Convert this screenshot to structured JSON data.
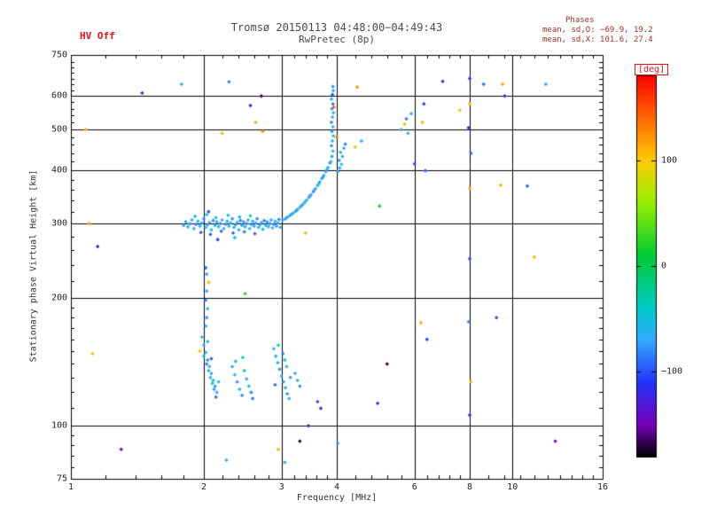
{
  "header": {
    "hv_status": "HV Off",
    "title": "Tromsø 20150113 04:48:00−04:49:43",
    "subtitle": "RwPretec (8p)",
    "phases": {
      "label": "Phases",
      "line_o": "mean, sd,O: −69.9, 19.2",
      "line_x": "mean, sd,X: 101.6, 27.4"
    }
  },
  "axes": {
    "x": {
      "label": "Frequency [MHz]",
      "scale": "log",
      "min": 1,
      "max": 16,
      "ticks": [
        1,
        2,
        3,
        4,
        6,
        8,
        10,
        16
      ],
      "minor": [
        1.2,
        1.4,
        1.6,
        1.8,
        2.2,
        2.4,
        2.6,
        2.8,
        3.2,
        3.4,
        3.6,
        3.8,
        4.4,
        4.8,
        5.2,
        5.6,
        6.4,
        6.8,
        7.2,
        7.6,
        8.8,
        9.6,
        10.4,
        11.2,
        12,
        12.8,
        13.6,
        14.4,
        15.2
      ]
    },
    "y": {
      "label": "Stationary phase Virtual Height [km]",
      "scale": "log",
      "min": 75,
      "max": 750,
      "ticks": [
        75,
        100,
        200,
        300,
        400,
        500,
        600,
        750
      ],
      "minor": [
        80,
        85,
        90,
        95,
        110,
        120,
        130,
        140,
        150,
        160,
        170,
        180,
        190,
        220,
        240,
        260,
        280,
        320,
        340,
        360,
        380,
        420,
        440,
        460,
        480,
        520,
        540,
        560,
        580,
        620,
        640,
        660,
        680,
        700,
        720
      ]
    }
  },
  "colorbar": {
    "label": "[deg]",
    "min": -180,
    "max": 180,
    "ticks": [
      100,
      0,
      -100
    ],
    "stops": [
      {
        "v": 180,
        "c": "#ff0000"
      },
      {
        "v": 140,
        "c": "#ff6600"
      },
      {
        "v": 100,
        "c": "#ffcc00"
      },
      {
        "v": 60,
        "c": "#99ee00"
      },
      {
        "v": 10,
        "c": "#00cc33"
      },
      {
        "v": -40,
        "c": "#00cccc"
      },
      {
        "v": -70,
        "c": "#33aaff"
      },
      {
        "v": -110,
        "c": "#2233ff"
      },
      {
        "v": -150,
        "c": "#7700bb"
      },
      {
        "v": -180,
        "c": "#000000"
      }
    ]
  },
  "chart_data": {
    "type": "scatter",
    "title": "Tromsø 20150113 04:48:00−04:49:43 — RwPretec (8p)",
    "xlabel": "Frequency [MHz]",
    "ylabel": "Stationary phase Virtual Height [km]",
    "x_range": [
      1,
      16
    ],
    "y_range": [
      75,
      750
    ],
    "color_range": [
      -180,
      180
    ],
    "color_units": "deg",
    "point_format": [
      "freq_MHz",
      "height_km",
      "phase_deg"
    ],
    "points": [
      [
        1.8,
        297,
        -62
      ],
      [
        1.82,
        303,
        -75
      ],
      [
        1.84,
        295,
        -58
      ],
      [
        1.86,
        300,
        -80
      ],
      [
        1.88,
        306,
        -70
      ],
      [
        1.9,
        292,
        -66
      ],
      [
        1.92,
        299,
        -85
      ],
      [
        1.94,
        304,
        -55
      ],
      [
        1.96,
        296,
        -72
      ],
      [
        1.98,
        301,
        -64
      ],
      [
        2.0,
        308,
        -78
      ],
      [
        2.02,
        294,
        -60
      ],
      [
        2.04,
        298,
        -74
      ],
      [
        2.06,
        302,
        -68
      ],
      [
        2.08,
        290,
        -52
      ],
      [
        2.1,
        305,
        -82
      ],
      [
        2.12,
        297,
        -63
      ],
      [
        2.14,
        303,
        -76
      ],
      [
        2.16,
        295,
        -59
      ],
      [
        2.18,
        300,
        -81
      ],
      [
        2.2,
        306,
        -71
      ],
      [
        2.22,
        292,
        -67
      ],
      [
        2.24,
        299,
        -86
      ],
      [
        2.26,
        304,
        -56
      ],
      [
        2.28,
        296,
        -73
      ],
      [
        2.3,
        301,
        -65
      ],
      [
        2.32,
        308,
        -79
      ],
      [
        2.34,
        294,
        -61
      ],
      [
        2.36,
        298,
        -75
      ],
      [
        2.38,
        302,
        -69
      ],
      [
        2.4,
        290,
        -53
      ],
      [
        2.42,
        305,
        -83
      ],
      [
        2.44,
        297,
        -64
      ],
      [
        2.46,
        303,
        -77
      ],
      [
        2.48,
        295,
        -60
      ],
      [
        2.5,
        300,
        -82
      ],
      [
        2.52,
        306,
        -72
      ],
      [
        2.54,
        292,
        -68
      ],
      [
        2.56,
        299,
        -87
      ],
      [
        2.58,
        304,
        -57
      ],
      [
        2.6,
        296,
        -74
      ],
      [
        2.62,
        301,
        -66
      ],
      [
        2.64,
        308,
        -80
      ],
      [
        2.66,
        294,
        -62
      ],
      [
        2.68,
        298,
        -76
      ],
      [
        2.7,
        302,
        -70
      ],
      [
        2.72,
        291,
        -54
      ],
      [
        2.74,
        305,
        -84
      ],
      [
        2.76,
        297,
        -65
      ],
      [
        2.78,
        303,
        -78
      ],
      [
        2.8,
        295,
        -61
      ],
      [
        2.82,
        300,
        -83
      ],
      [
        2.84,
        306,
        -73
      ],
      [
        2.86,
        293,
        -69
      ],
      [
        2.88,
        299,
        -88
      ],
      [
        2.9,
        304,
        -58
      ],
      [
        2.92,
        296,
        -75
      ],
      [
        2.94,
        301,
        -67
      ],
      [
        2.96,
        307,
        -81
      ],
      [
        2.98,
        294,
        -63
      ],
      [
        1.91,
        312,
        -45
      ],
      [
        1.97,
        286,
        -95
      ],
      [
        2.03,
        315,
        -50
      ],
      [
        2.07,
        283,
        -100
      ],
      [
        2.13,
        310,
        -48
      ],
      [
        2.19,
        288,
        -92
      ],
      [
        2.27,
        314,
        -46
      ],
      [
        2.33,
        285,
        -98
      ],
      [
        2.41,
        311,
        -44
      ],
      [
        2.47,
        287,
        -90
      ],
      [
        2.55,
        313,
        -42
      ],
      [
        2.61,
        284,
        -96
      ],
      [
        2.05,
        320,
        -105
      ],
      [
        2.35,
        278,
        -40
      ],
      [
        2.15,
        275,
        -110
      ],
      [
        3.4,
        285,
        110
      ],
      [
        3.02,
        306,
        -64
      ],
      [
        3.06,
        308,
        -72
      ],
      [
        3.1,
        311,
        -58
      ],
      [
        3.14,
        314,
        -78
      ],
      [
        3.18,
        317,
        -66
      ],
      [
        3.22,
        320,
        -54
      ],
      [
        3.26,
        324,
        -74
      ],
      [
        3.3,
        328,
        -62
      ],
      [
        3.34,
        332,
        -80
      ],
      [
        3.38,
        336,
        -68
      ],
      [
        3.42,
        341,
        -56
      ],
      [
        3.46,
        346,
        -76
      ],
      [
        3.5,
        351,
        -64
      ],
      [
        3.54,
        357,
        -82
      ],
      [
        3.58,
        363,
        -70
      ],
      [
        3.62,
        369,
        -58
      ],
      [
        3.66,
        376,
        -78
      ],
      [
        3.7,
        383,
        -66
      ],
      [
        3.74,
        390,
        -54
      ],
      [
        3.78,
        398,
        -74
      ],
      [
        3.82,
        407,
        -62
      ],
      [
        3.86,
        417,
        -80
      ],
      [
        3.08,
        310,
        -70
      ],
      [
        3.16,
        316,
        -60
      ],
      [
        3.24,
        322,
        -75
      ],
      [
        3.32,
        330,
        -65
      ],
      [
        3.4,
        339,
        -55
      ],
      [
        3.48,
        349,
        -72
      ],
      [
        3.56,
        360,
        -68
      ],
      [
        3.64,
        372,
        -62
      ],
      [
        3.72,
        386,
        -76
      ],
      [
        3.8,
        402,
        -58
      ],
      [
        3.88,
        420,
        -66
      ],
      [
        3.9,
        432,
        -74
      ],
      [
        3.92,
        445,
        -60
      ],
      [
        3.89,
        458,
        -82
      ],
      [
        3.91,
        470,
        -68
      ],
      [
        3.93,
        483,
        -56
      ],
      [
        3.9,
        495,
        -76
      ],
      [
        3.92,
        508,
        -64
      ],
      [
        3.89,
        520,
        -84
      ],
      [
        3.91,
        535,
        -70
      ],
      [
        3.93,
        548,
        -58
      ],
      [
        3.9,
        560,
        -78
      ],
      [
        3.92,
        575,
        -90
      ],
      [
        3.89,
        590,
        -66
      ],
      [
        3.91,
        605,
        -100
      ],
      [
        3.93,
        618,
        -72
      ],
      [
        3.92,
        632,
        -76
      ],
      [
        3.94,
        565,
        140
      ],
      [
        4.02,
        398,
        -62
      ],
      [
        4.06,
        406,
        -74
      ],
      [
        4.1,
        414,
        -58
      ],
      [
        4.05,
        423,
        -78
      ],
      [
        4.12,
        432,
        -66
      ],
      [
        4.08,
        442,
        -54
      ],
      [
        4.15,
        452,
        -72
      ],
      [
        4.18,
        462,
        -86
      ],
      [
        4.0,
        480,
        135
      ],
      [
        4.4,
        455,
        105
      ],
      [
        4.55,
        470,
        -60
      ],
      [
        5.6,
        500,
        -72
      ],
      [
        5.7,
        515,
        108
      ],
      [
        5.75,
        530,
        -88
      ],
      [
        5.8,
        490,
        -58
      ],
      [
        4.45,
        630,
        120
      ],
      [
        5.9,
        545,
        -70
      ],
      [
        1.98,
        162,
        -66
      ],
      [
        2.0,
        155,
        -74
      ],
      [
        2.02,
        149,
        -58
      ],
      [
        2.04,
        143,
        -80
      ],
      [
        2.06,
        138,
        -64
      ],
      [
        2.08,
        133,
        -72
      ],
      [
        2.1,
        128,
        -56
      ],
      [
        2.12,
        124,
        -78
      ],
      [
        2.14,
        120,
        -68
      ],
      [
        2.0,
        146,
        -52
      ],
      [
        2.03,
        140,
        -84
      ],
      [
        2.05,
        135,
        -62
      ],
      [
        2.07,
        130,
        -70
      ],
      [
        2.09,
        126,
        -58
      ],
      [
        2.11,
        122,
        -76
      ],
      [
        1.96,
        150,
        105
      ],
      [
        2.13,
        117,
        -90
      ],
      [
        2.04,
        158,
        -48
      ],
      [
        2.08,
        144,
        -100
      ],
      [
        2.16,
        127,
        -60
      ],
      [
        2.02,
        172,
        -64
      ],
      [
        2.03,
        180,
        -76
      ],
      [
        2.04,
        189,
        -58
      ],
      [
        2.02,
        198,
        -82
      ],
      [
        2.03,
        208,
        -66
      ],
      [
        2.05,
        218,
        108
      ],
      [
        2.03,
        228,
        -72
      ],
      [
        2.02,
        236,
        -95
      ],
      [
        2.32,
        138,
        -70
      ],
      [
        2.35,
        132,
        -58
      ],
      [
        2.38,
        127,
        -78
      ],
      [
        2.41,
        122,
        -64
      ],
      [
        2.44,
        118,
        -84
      ],
      [
        2.47,
        135,
        -52
      ],
      [
        2.5,
        129,
        -72
      ],
      [
        2.53,
        124,
        -60
      ],
      [
        2.56,
        120,
        -80
      ],
      [
        2.36,
        142,
        -66
      ],
      [
        2.45,
        145,
        -46
      ],
      [
        2.58,
        116,
        -88
      ],
      [
        2.88,
        152,
        -68
      ],
      [
        2.91,
        146,
        -76
      ],
      [
        2.94,
        141,
        -58
      ],
      [
        2.97,
        136,
        -80
      ],
      [
        3.0,
        131,
        -64
      ],
      [
        3.03,
        127,
        -72
      ],
      [
        3.06,
        123,
        -56
      ],
      [
        3.09,
        119,
        -78
      ],
      [
        3.12,
        116,
        -66
      ],
      [
        2.95,
        155,
        -50
      ],
      [
        3.02,
        148,
        -84
      ],
      [
        3.08,
        138,
        -60
      ],
      [
        3.14,
        130,
        -74
      ],
      [
        2.9,
        125,
        -92
      ],
      [
        3.05,
        143,
        -46
      ],
      [
        3.22,
        133,
        -72
      ],
      [
        3.26,
        128,
        -60
      ],
      [
        3.3,
        124,
        -80
      ],
      [
        3.62,
        114,
        -105
      ],
      [
        3.68,
        110,
        -118
      ],
      [
        1.08,
        500,
        115
      ],
      [
        1.1,
        300,
        120
      ],
      [
        1.12,
        148,
        108
      ],
      [
        1.3,
        88,
        -150
      ],
      [
        1.15,
        265,
        -130
      ],
      [
        1.45,
        610,
        -140
      ],
      [
        1.78,
        640,
        -60
      ],
      [
        2.28,
        648,
        -85
      ],
      [
        2.62,
        520,
        112
      ],
      [
        2.55,
        570,
        -125
      ],
      [
        3.05,
        82,
        -60
      ],
      [
        2.95,
        88,
        108
      ],
      [
        2.25,
        83,
        -70
      ],
      [
        3.45,
        100,
        -135
      ],
      [
        4.02,
        91,
        -80
      ],
      [
        6.3,
        575,
        -115
      ],
      [
        6.25,
        520,
        110
      ],
      [
        6.35,
        400,
        -95
      ],
      [
        6.2,
        175,
        112
      ],
      [
        6.4,
        160,
        -105
      ],
      [
        6.0,
        415,
        -100
      ],
      [
        8.0,
        660,
        -110
      ],
      [
        8.0,
        575,
        108
      ],
      [
        7.95,
        505,
        -120
      ],
      [
        8.05,
        440,
        -90
      ],
      [
        8.0,
        363,
        112
      ],
      [
        8.0,
        248,
        -105
      ],
      [
        7.95,
        176,
        -80
      ],
      [
        8.05,
        127,
        105
      ],
      [
        8.0,
        106,
        -125
      ],
      [
        9.4,
        370,
        110
      ],
      [
        9.2,
        180,
        -100
      ],
      [
        9.6,
        600,
        -130
      ],
      [
        9.5,
        640,
        115
      ],
      [
        10.8,
        368,
        -95
      ],
      [
        11.2,
        250,
        108
      ],
      [
        12.5,
        92,
        -145
      ],
      [
        11.9,
        640,
        -70
      ],
      [
        8.6,
        640,
        -95
      ],
      [
        6.95,
        650,
        -115
      ],
      [
        7.6,
        555,
        105
      ],
      [
        4.95,
        113,
        -118
      ],
      [
        2.7,
        600,
        -170
      ],
      [
        5.2,
        140,
        -165
      ],
      [
        3.3,
        92,
        -172
      ],
      [
        2.2,
        490,
        112
      ],
      [
        2.72,
        495,
        118
      ],
      [
        2.48,
        205,
        30
      ],
      [
        5.0,
        330,
        15
      ]
    ]
  }
}
